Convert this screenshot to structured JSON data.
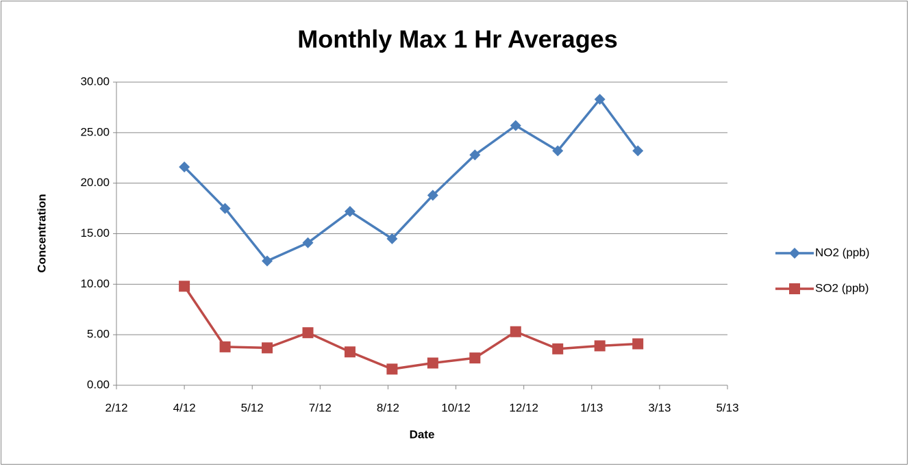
{
  "chart_data": {
    "type": "line",
    "title": "Monthly Max 1 Hr Averages",
    "xlabel": "Date",
    "ylabel": "Concentration",
    "x": [
      "2012-04-01",
      "2012-05-01",
      "2012-06-01",
      "2012-07-01",
      "2012-08-01",
      "2012-09-01",
      "2012-10-01",
      "2012-11-01",
      "2012-12-01",
      "2013-01-01",
      "2013-02-01",
      "2013-03-01"
    ],
    "series": [
      {
        "name": "NO2 (ppb)",
        "color": "#4a7ebb",
        "marker": "diamond",
        "values": [
          21.6,
          17.5,
          12.3,
          14.1,
          17.2,
          14.5,
          18.8,
          22.8,
          25.7,
          23.2,
          28.3,
          23.2
        ]
      },
      {
        "name": "SO2 (ppb)",
        "color": "#be4b48",
        "marker": "square",
        "values": [
          9.8,
          3.8,
          3.7,
          5.2,
          3.3,
          1.6,
          2.2,
          2.7,
          5.3,
          3.6,
          3.9,
          4.1
        ]
      }
    ],
    "xlim": [
      "2012-02-11",
      "2013-05-06"
    ],
    "xticks": [
      {
        "value": "2012-02-11",
        "label": "2/12"
      },
      {
        "value": "2012-04-01",
        "label": "4/12"
      },
      {
        "value": "2012-05-21",
        "label": "5/12"
      },
      {
        "value": "2012-07-10",
        "label": "7/12"
      },
      {
        "value": "2012-08-29",
        "label": "8/12"
      },
      {
        "value": "2012-10-18",
        "label": "10/12"
      },
      {
        "value": "2012-12-07",
        "label": "12/12"
      },
      {
        "value": "2013-01-26",
        "label": "1/13"
      },
      {
        "value": "2013-03-17",
        "label": "3/13"
      },
      {
        "value": "2013-05-06",
        "label": "5/13"
      }
    ],
    "ylim": [
      0,
      30
    ],
    "yticks": [
      {
        "value": 0,
        "label": "0.00"
      },
      {
        "value": 5,
        "label": "5.00"
      },
      {
        "value": 10,
        "label": "10.00"
      },
      {
        "value": 15,
        "label": "15.00"
      },
      {
        "value": 20,
        "label": "20.00"
      },
      {
        "value": 25,
        "label": "25.00"
      },
      {
        "value": 30,
        "label": "30.00"
      }
    ],
    "grid": true,
    "legend": "right"
  }
}
